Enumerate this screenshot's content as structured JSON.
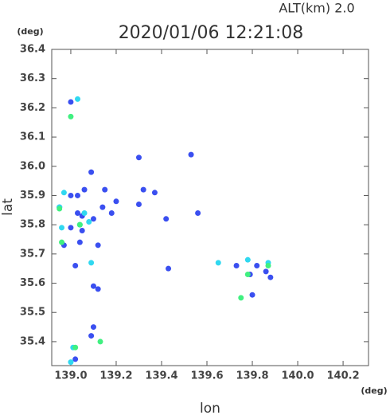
{
  "chart_data": {
    "type": "scatter",
    "title": "2020/01/06 12:21:08",
    "subtitle": "ALT(km) 2.0",
    "x_label": "lon",
    "y_label": "lat",
    "x_unit": "(deg)",
    "y_unit": "(deg)",
    "xlim": [
      138.916,
      140.312
    ],
    "ylim": [
      35.318,
      36.4
    ],
    "xticks": [
      {
        "value": 139,
        "label": "139.0"
      },
      139.2,
      139.4,
      139.6,
      139.8,
      {
        "value": 140,
        "label": "140.0"
      },
      140.2
    ],
    "yticks": [
      {
        "value": 35.4,
        "label": "35.4"
      },
      35.5,
      35.6,
      35.7,
      35.8,
      35.9,
      {
        "value": 36,
        "label": "36.0"
      },
      36.1,
      36.2,
      36.3,
      36.4
    ],
    "series": [
      {
        "color": "#3a4ff0",
        "x": [
          139.0,
          139.3,
          139.53,
          139.09,
          139.03,
          139.06,
          139.0,
          138.95,
          139.03,
          139.05,
          139.1,
          139.14,
          139.18,
          139.3,
          139.32,
          139.42,
          139.2,
          139.05,
          139.0,
          138.97,
          139.04,
          139.12,
          139.02,
          139.1,
          139.12,
          139.43,
          139.56,
          139.73,
          139.79,
          139.82,
          139.86,
          139.8,
          139.88,
          139.1,
          139.09,
          139.02,
          139.37,
          139.15
        ],
        "y": [
          36.22,
          36.03,
          36.04,
          35.98,
          35.9,
          35.92,
          35.9,
          35.86,
          35.84,
          35.83,
          35.82,
          35.86,
          35.84,
          35.87,
          35.92,
          35.82,
          35.88,
          35.78,
          35.79,
          35.73,
          35.74,
          35.73,
          35.66,
          35.59,
          35.58,
          35.65,
          35.84,
          35.66,
          35.63,
          35.66,
          35.64,
          35.56,
          35.62,
          35.45,
          35.42,
          35.34,
          35.91,
          35.92
        ]
      },
      {
        "color": "#30d8f0",
        "x": [
          139.03,
          138.97,
          139.06,
          139.08,
          138.95,
          138.96,
          139.09,
          139.04,
          139.78,
          139.65,
          139.87,
          139.01,
          139.0
        ],
        "y": [
          36.23,
          35.91,
          35.84,
          35.81,
          35.86,
          35.79,
          35.67,
          35.8,
          35.68,
          35.67,
          35.67,
          35.38,
          35.33
        ]
      },
      {
        "color": "#40f080",
        "x": [
          139.0,
          138.95,
          138.96,
          139.13,
          139.78,
          139.87,
          139.75,
          139.02,
          139.04
        ],
        "y": [
          36.17,
          35.855,
          35.74,
          35.4,
          35.63,
          35.66,
          35.55,
          35.38,
          35.8
        ]
      }
    ]
  }
}
